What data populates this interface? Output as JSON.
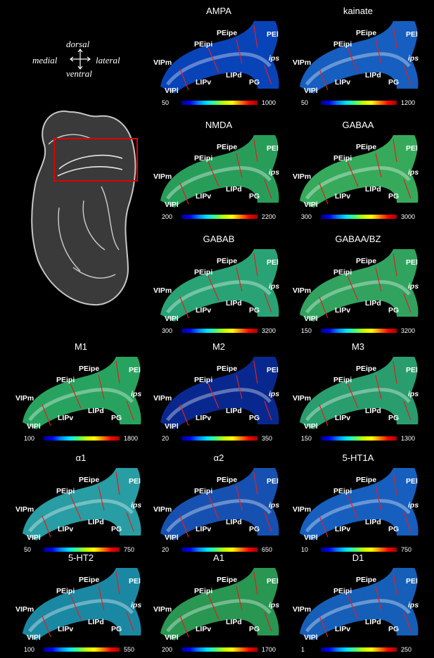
{
  "compass": {
    "up": "dorsal",
    "down": "ventral",
    "left": "medial",
    "right": "lateral"
  },
  "region_labels": {
    "peipi": "PEipi",
    "peipe": "PEipe",
    "pel": "PEl",
    "ips": "ips",
    "vipm": "VIPm",
    "vipl": "VIPl",
    "lipv": "LIPv",
    "lipd": "LIPd",
    "pg": "PG"
  },
  "panels": [
    {
      "title": "AMPA",
      "min": "50",
      "max": "1000",
      "tone": "#0a4fd8"
    },
    {
      "title": "kainate",
      "min": "50",
      "max": "1200",
      "tone": "#1a6fe0"
    },
    {
      "title": "NMDA",
      "min": "200",
      "max": "2200",
      "tone": "#2fb86a"
    },
    {
      "title": "GABAA",
      "min": "300",
      "max": "3000",
      "tone": "#3fc86a"
    },
    {
      "title": "GABAB",
      "min": "300",
      "max": "3200",
      "tone": "#30c08a"
    },
    {
      "title": "GABAA/BZ",
      "min": "150",
      "max": "3200",
      "tone": "#3ac070"
    },
    {
      "title": "M1",
      "min": "100",
      "max": "1800",
      "tone": "#2fbf70"
    },
    {
      "title": "M2",
      "min": "20",
      "max": "350",
      "tone": "#0a2fa8"
    },
    {
      "title": "M3",
      "min": "150",
      "max": "1300",
      "tone": "#30b880"
    },
    {
      "title": "α1",
      "min": "50",
      "max": "750",
      "tone": "#2fb8c0"
    },
    {
      "title": "α2",
      "min": "20",
      "max": "650",
      "tone": "#1a5fd0"
    },
    {
      "title": "5-HT1A",
      "min": "10",
      "max": "750",
      "tone": "#1a70e0"
    },
    {
      "title": "5-HT2",
      "min": "100",
      "max": "550",
      "tone": "#20a0c0"
    },
    {
      "title": "A1",
      "min": "200",
      "max": "1700",
      "tone": "#30b060"
    },
    {
      "title": "D1",
      "min": "1",
      "max": "250",
      "tone": "#1a70d8"
    }
  ]
}
